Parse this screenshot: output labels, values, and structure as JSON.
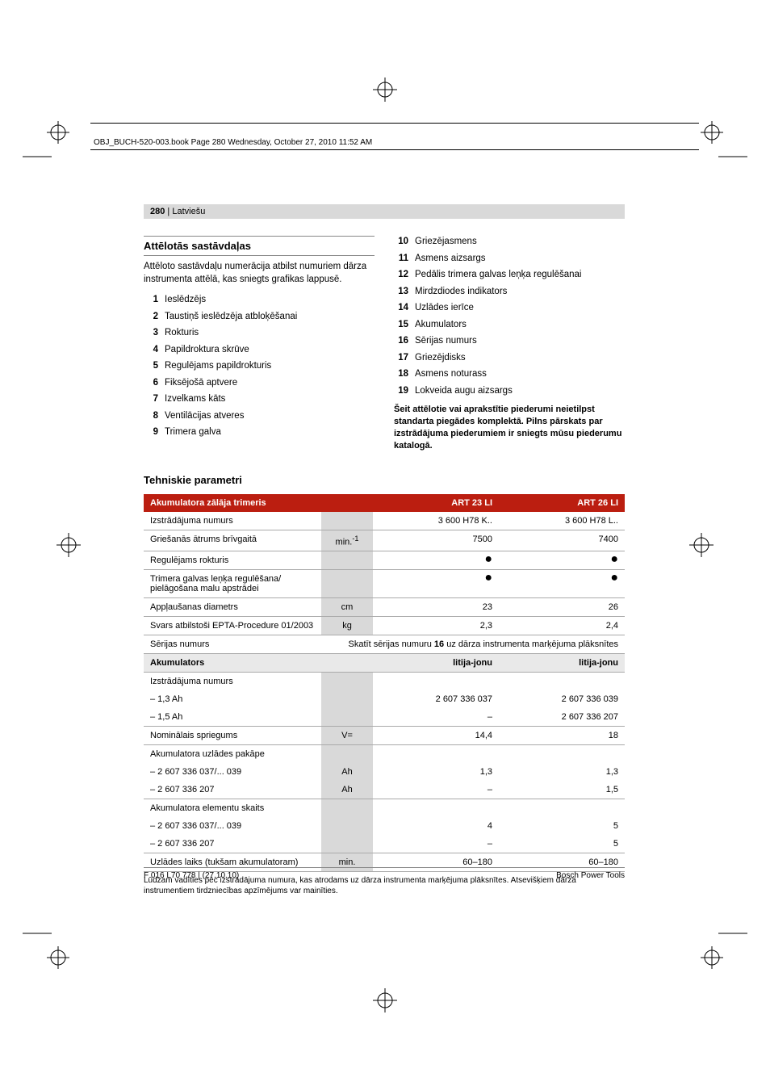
{
  "header": {
    "running": "OBJ_BUCH-520-003.book  Page 280  Wednesday, October 27, 2010  11:52 AM",
    "page_num": "280",
    "lang": "Latviešu"
  },
  "section_parts_title": "Attēlotās sastāvdaļas",
  "section_parts_intro": "Attēloto sastāvdaļu numerācija atbilst numuriem dārza instrumenta attēlā, kas sniegts grafikas lappusē.",
  "parts_left": [
    {
      "n": "1",
      "t": "Ieslēdzējs"
    },
    {
      "n": "2",
      "t": "Taustiņš ieslēdzēja atbloķēšanai"
    },
    {
      "n": "3",
      "t": "Rokturis"
    },
    {
      "n": "4",
      "t": "Papildroktura skrūve"
    },
    {
      "n": "5",
      "t": "Regulējams papildrokturis"
    },
    {
      "n": "6",
      "t": "Fiksējošā aptvere"
    },
    {
      "n": "7",
      "t": "Izvelkams kāts"
    },
    {
      "n": "8",
      "t": "Ventilācijas atveres"
    },
    {
      "n": "9",
      "t": "Trimera galva"
    }
  ],
  "parts_right": [
    {
      "n": "10",
      "t": "Griezējasmens"
    },
    {
      "n": "11",
      "t": "Asmens aizsargs"
    },
    {
      "n": "12",
      "t": "Pedālis trimera galvas leņķa regulēšanai"
    },
    {
      "n": "13",
      "t": "Mirdzdiodes indikators"
    },
    {
      "n": "14",
      "t": "Uzlādes ierīce"
    },
    {
      "n": "15",
      "t": "Akumulators"
    },
    {
      "n": "16",
      "t": "Sērijas numurs"
    },
    {
      "n": "17",
      "t": "Griezējdisks"
    },
    {
      "n": "18",
      "t": "Asmens noturass"
    },
    {
      "n": "19",
      "t": "Lokveida augu aizsargs"
    }
  ],
  "parts_note": "Šeit attēlotie vai aprakstītie piederumi neietilpst standarta piegādes komplektā. Pilns pārskats par izstrādājuma piederumiem ir sniegts mūsu piederumu katalogā.",
  "tech_title": "Tehniskie parametri",
  "table": {
    "header": {
      "c0": "Akumulatora zālāja trimeris",
      "c1": "",
      "c2": "ART 23 LI",
      "c3": "ART 26 LI"
    },
    "rows": [
      {
        "label": "Izstrādājuma numurs",
        "unit": "",
        "v1": "3 600 H78 K..",
        "v2": "3 600 H78 L.."
      },
      {
        "label": "Griešanās ātrums brīvgaitā",
        "unit": "min.-1",
        "v1": "7500",
        "v2": "7400"
      },
      {
        "label": "Regulējams rokturis",
        "unit": "",
        "v1": "●",
        "v2": "●",
        "dot": true
      },
      {
        "label": "Trimera galvas leņķa regulēšana/ pielāgošana malu apstrādei",
        "unit": "",
        "v1": "●",
        "v2": "●",
        "dot": true
      },
      {
        "label": "Appļaušanas diametrs",
        "unit": "cm",
        "v1": "23",
        "v2": "26"
      },
      {
        "label": "Svars atbilstoši EPTA-Procedure 01/2003",
        "unit": "kg",
        "v1": "2,3",
        "v2": "2,4"
      }
    ],
    "serial_row": {
      "label": "Sērijas numurs",
      "note_pre": "Skatīt sērijas numuru ",
      "note_bold": "16",
      "note_post": " uz dārza instrumenta marķējuma plāksnītes"
    },
    "sub_header": {
      "c0": "Akumulators",
      "c2": "litija-jonu",
      "c3": "litija-jonu"
    },
    "rows2": [
      {
        "label": "Izstrādājuma numurs",
        "sub": [
          {
            "l": "– 1,3 Ah",
            "v1": "2 607 336 037",
            "v2": "2 607 336 039"
          },
          {
            "l": "– 1,5 Ah",
            "v1": "–",
            "v2": "2 607 336 207"
          }
        ]
      },
      {
        "label": "Nominālais spriegums",
        "unit": "V=",
        "v1": "14,4",
        "v2": "18"
      },
      {
        "label": "Akumulatora uzlādes pakāpe",
        "sub": [
          {
            "l": "– 2 607 336 037/... 039",
            "u": "Ah",
            "v1": "1,3",
            "v2": "1,3"
          },
          {
            "l": "– 2 607 336 207",
            "u": "Ah",
            "v1": "–",
            "v2": "1,5"
          }
        ]
      },
      {
        "label": "Akumulatora elementu skaits",
        "sub": [
          {
            "l": "– 2 607 336 037/... 039",
            "v1": "4",
            "v2": "5"
          },
          {
            "l": "– 2 607 336 207",
            "v1": "–",
            "v2": "5"
          }
        ]
      },
      {
        "label": "Uzlādes laiks (tukšam akumulatoram)",
        "unit": "min.",
        "v1": "60–180",
        "v2": "60–180"
      }
    ]
  },
  "footnote": "Lūdzam vadīties pēc izstrādājuma numura, kas atrodams uz dārza instrumenta marķējuma plāksnītes. Atsevišķiem dārza instrumentiem tirdzniecības apzīmējums var mainīties.",
  "footer": {
    "left": "F 016 L70 778 | (27.10.10)",
    "right": "Bosch Power Tools"
  },
  "colors": {
    "accent": "#bb1e10",
    "grey_bar": "#d9d9d9",
    "grey_sub": "#e9e9e9",
    "border": "#aaaaaa",
    "text": "#000000",
    "bg": "#ffffff"
  }
}
